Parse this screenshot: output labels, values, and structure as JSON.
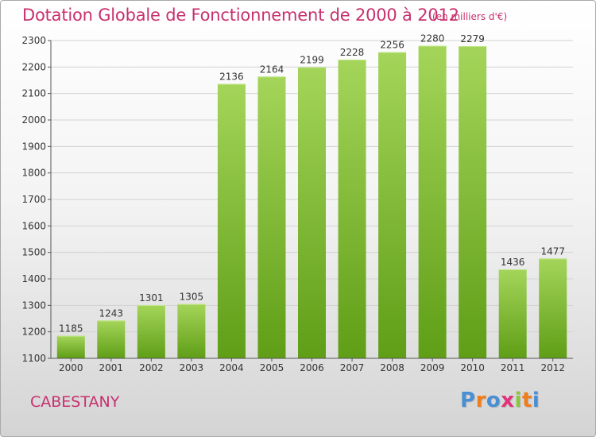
{
  "header": {
    "title": "Dotation Globale de Fonctionnement de 2000 à 2012",
    "subtitle": "(en milliers d'€)"
  },
  "footer": {
    "city": "CABESTANY",
    "logo": [
      "P",
      "r",
      "o",
      "x",
      "i",
      "t",
      "i"
    ],
    "logo_colors": [
      "#4a8fd4",
      "#ef7d1a",
      "#4a8fd4",
      "#e0337a",
      "#8cc63f",
      "#ef7d1a",
      "#4a8fd4"
    ]
  },
  "chart_data": {
    "type": "bar",
    "title": "Dotation Globale de Fonctionnement de 2000 à 2012",
    "subtitle": "(en milliers d'€)",
    "categories": [
      "2000",
      "2001",
      "2002",
      "2003",
      "2004",
      "2005",
      "2006",
      "2007",
      "2008",
      "2009",
      "2010",
      "2011",
      "2012"
    ],
    "values": [
      1185,
      1243,
      1301,
      1305,
      2136,
      2164,
      2199,
      2228,
      2256,
      2280,
      2279,
      1436,
      1477
    ],
    "data_labels": [
      "1185",
      "1243",
      "1301",
      "1305",
      "2136",
      "2164",
      "2199",
      "2228",
      "2256",
      "2280",
      "2279",
      "1436",
      "1477"
    ],
    "ylim": [
      1100,
      2300
    ],
    "yticks": [
      1100,
      1200,
      1300,
      1400,
      1500,
      1600,
      1700,
      1800,
      1900,
      2000,
      2100,
      2200,
      2300
    ],
    "grid": true,
    "bar_color_top": "#a4d55a",
    "bar_color_bottom": "#5f9e16"
  }
}
